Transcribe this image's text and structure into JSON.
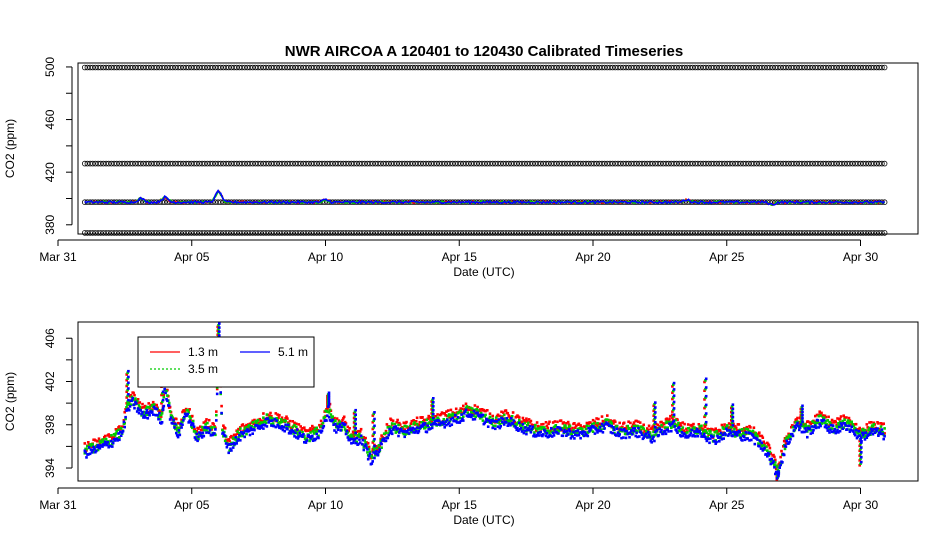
{
  "title": "NWR   AIRCOA  A   120401  to  120430   Calibrated Timeseries",
  "chart_data": [
    {
      "type": "scatter",
      "title": "NWR   AIRCOA  A   120401  to  120430   Calibrated Timeseries",
      "xlabel": "Date (UTC)",
      "ylabel": "CO2 (ppm)",
      "x_ticks": [
        {
          "day": 0,
          "label": "Mar 31"
        },
        {
          "day": 5,
          "label": "Apr 05"
        },
        {
          "day": 10,
          "label": "Apr 10"
        },
        {
          "day": 15,
          "label": "Apr 15"
        },
        {
          "day": 20,
          "label": "Apr 20"
        },
        {
          "day": 25,
          "label": "Apr 25"
        },
        {
          "day": 30,
          "label": "Apr 30"
        }
      ],
      "xlim": [
        0,
        31.0
      ],
      "ylim": [
        373,
        503
      ],
      "y_ticks": [
        380,
        420,
        460,
        500
      ],
      "y_minor_ticks": [
        400,
        440,
        480
      ],
      "reference_levels": [
        {
          "name": "black markers",
          "value": 499.6,
          "color": "#000000"
        },
        {
          "name": "black markers",
          "value": 426.5,
          "color": "#000000"
        },
        {
          "name": "black markers",
          "value": 397.2,
          "color": "#000000"
        },
        {
          "name": "black markers",
          "value": 373.8,
          "color": "#000000"
        }
      ],
      "series": [
        {
          "color": "#ff0000"
        },
        {
          "color": "#00cc00"
        },
        {
          "color": "#0000ff"
        }
      ],
      "x_range": [
        1.0,
        30.9
      ]
    },
    {
      "type": "scatter",
      "xlabel": "Date (UTC)",
      "ylabel": "CO2 (ppm)",
      "x_ticks": [
        {
          "day": 0,
          "label": "Mar 31"
        },
        {
          "day": 5,
          "label": "Apr 05"
        },
        {
          "day": 10,
          "label": "Apr 10"
        },
        {
          "day": 15,
          "label": "Apr 15"
        },
        {
          "day": 20,
          "label": "Apr 20"
        },
        {
          "day": 25,
          "label": "Apr 25"
        },
        {
          "day": 30,
          "label": "Apr 30"
        }
      ],
      "xlim": [
        0,
        31.0
      ],
      "ylim": [
        392.8,
        407.5
      ],
      "y_ticks": [
        394,
        398,
        402,
        406
      ],
      "y_minor_ticks": [
        396,
        400,
        404
      ],
      "legend": [
        {
          "label": "1.3 m",
          "color": "#ff0000"
        },
        {
          "label": "3.5 m",
          "color": "#00cc00"
        },
        {
          "label": "5.1 m",
          "color": "#0000ff"
        }
      ],
      "series": [
        {
          "name": "1.3 m",
          "color": "#ff0000"
        },
        {
          "name": "3.5 m",
          "color": "#00cc00"
        },
        {
          "name": "5.1 m",
          "color": "#0000ff"
        }
      ],
      "timeseries_keypoints": [
        [
          1.0,
          395.6
        ],
        [
          1.5,
          396.0
        ],
        [
          2.0,
          396.6
        ],
        [
          2.4,
          397.4
        ],
        [
          2.6,
          399.6
        ],
        [
          2.8,
          400.3
        ],
        [
          3.2,
          399.0
        ],
        [
          3.6,
          399.6
        ],
        [
          3.9,
          398.6
        ],
        [
          4.0,
          401.8
        ],
        [
          4.2,
          399.0
        ],
        [
          4.5,
          397.3
        ],
        [
          4.8,
          399.4
        ],
        [
          5.2,
          397.0
        ],
        [
          5.6,
          397.8
        ],
        [
          5.9,
          397.5
        ],
        [
          6.0,
          405.0
        ],
        [
          6.15,
          397.5
        ],
        [
          6.4,
          396.0
        ],
        [
          6.8,
          397.2
        ],
        [
          7.3,
          397.8
        ],
        [
          7.8,
          398.5
        ],
        [
          8.3,
          398.3
        ],
        [
          8.8,
          397.6
        ],
        [
          9.3,
          396.8
        ],
        [
          9.8,
          397.5
        ],
        [
          10.1,
          399.5
        ],
        [
          10.4,
          397.8
        ],
        [
          10.7,
          398.0
        ],
        [
          11.0,
          396.5
        ],
        [
          11.3,
          397.0
        ],
        [
          11.7,
          395.0
        ],
        [
          12.0,
          395.8
        ],
        [
          12.4,
          397.8
        ],
        [
          13.0,
          397.5
        ],
        [
          13.5,
          397.9
        ],
        [
          14.0,
          398.1
        ],
        [
          14.5,
          398.5
        ],
        [
          15.0,
          398.8
        ],
        [
          15.3,
          399.3
        ],
        [
          15.8,
          398.9
        ],
        [
          16.3,
          398.2
        ],
        [
          16.8,
          398.6
        ],
        [
          17.4,
          397.9
        ],
        [
          18.0,
          397.4
        ],
        [
          18.8,
          397.6
        ],
        [
          19.5,
          397.3
        ],
        [
          20.0,
          397.7
        ],
        [
          20.5,
          398.1
        ],
        [
          21.0,
          397.4
        ],
        [
          21.6,
          397.6
        ],
        [
          22.2,
          397.0
        ],
        [
          22.5,
          397.5
        ],
        [
          23.0,
          398.2
        ],
        [
          23.5,
          397.2
        ],
        [
          24.0,
          397.6
        ],
        [
          24.5,
          396.8
        ],
        [
          25.0,
          397.5
        ],
        [
          25.5,
          397.3
        ],
        [
          26.0,
          397.0
        ],
        [
          26.5,
          395.8
        ],
        [
          26.9,
          393.6
        ],
        [
          27.2,
          396.2
        ],
        [
          27.6,
          398.2
        ],
        [
          28.0,
          397.5
        ],
        [
          28.5,
          398.5
        ],
        [
          29.0,
          397.7
        ],
        [
          29.5,
          398.2
        ],
        [
          30.0,
          397.1
        ],
        [
          30.5,
          397.6
        ],
        [
          30.9,
          397.3
        ]
      ],
      "spikes": [
        [
          2.6,
          402.8
        ],
        [
          3.9,
          403.2
        ],
        [
          6.0,
          407.2
        ],
        [
          10.1,
          400.8
        ],
        [
          11.1,
          399.2
        ],
        [
          11.8,
          399.0
        ],
        [
          14.0,
          400.3
        ],
        [
          22.3,
          399.9
        ],
        [
          23.0,
          401.7
        ],
        [
          24.2,
          402.1
        ],
        [
          25.2,
          399.7
        ],
        [
          27.8,
          399.6
        ],
        [
          30.0,
          394.4
        ],
        [
          26.9,
          393.1
        ]
      ],
      "x_range": [
        1.0,
        30.9
      ]
    }
  ]
}
